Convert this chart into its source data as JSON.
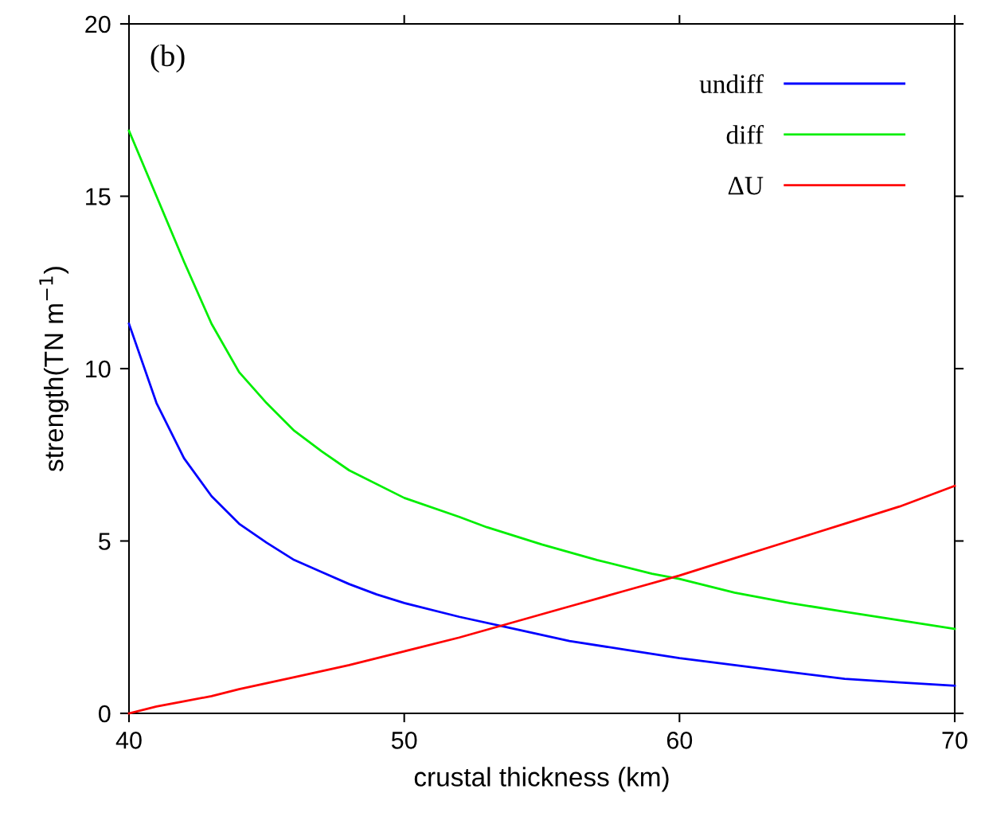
{
  "chart_data": {
    "type": "line",
    "xlabel": "crustal thickness (km)",
    "ylabel": "strength(TN m$^{−1}$)",
    "annotations": [
      "(b)"
    ],
    "xlim": [
      40,
      70
    ],
    "xticks": [
      40,
      50,
      60,
      70
    ],
    "ylim": [
      0,
      20
    ],
    "yticks": [
      0,
      5,
      10,
      15,
      20
    ],
    "grid": false,
    "legend": "top right",
    "marker": "none",
    "line_style": "solid",
    "series": [
      {
        "name": "undiff",
        "color": "#0000ff",
        "x": [
          40,
          41,
          42,
          43,
          44,
          45,
          46,
          47,
          48,
          49,
          50,
          52,
          54,
          56,
          58,
          60,
          62,
          64,
          66,
          68,
          70
        ],
        "values": [
          11.3,
          9.0,
          7.4,
          6.3,
          5.5,
          4.95,
          4.45,
          4.1,
          3.75,
          3.45,
          3.2,
          2.8,
          2.45,
          2.1,
          1.85,
          1.6,
          1.4,
          1.2,
          1.0,
          0.9,
          0.8
        ]
      },
      {
        "name": "diff",
        "color": "#00ee00",
        "x": [
          40,
          41,
          42,
          43,
          44,
          45,
          46,
          47,
          48,
          50,
          52,
          53,
          55,
          57,
          59,
          60,
          62,
          64,
          66,
          68,
          70
        ],
        "values": [
          16.9,
          15.0,
          13.1,
          11.3,
          9.9,
          9.0,
          8.2,
          7.6,
          7.05,
          6.25,
          5.7,
          5.4,
          4.9,
          4.45,
          4.05,
          3.9,
          3.5,
          3.2,
          2.95,
          2.7,
          2.45
        ]
      },
      {
        "name": "ΔU",
        "color": "#ff0000",
        "x": [
          40,
          41,
          42,
          43,
          44,
          46,
          48,
          50,
          52,
          54,
          56,
          58,
          60,
          62,
          64,
          66,
          68,
          70
        ],
        "values": [
          0,
          0.2,
          0.35,
          0.5,
          0.7,
          1.05,
          1.4,
          1.8,
          2.2,
          2.65,
          3.1,
          3.55,
          4.0,
          4.5,
          5.0,
          5.5,
          6.0,
          6.6
        ]
      }
    ]
  }
}
